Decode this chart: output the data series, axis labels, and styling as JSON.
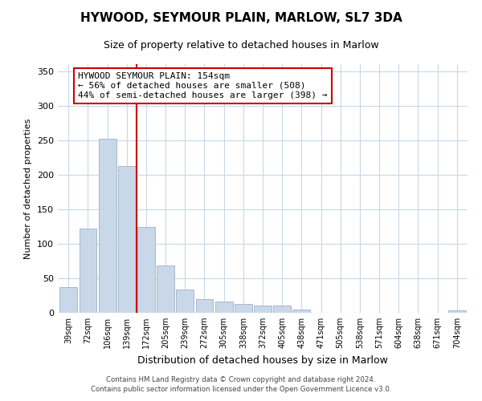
{
  "title": "HYWOOD, SEYMOUR PLAIN, MARLOW, SL7 3DA",
  "subtitle": "Size of property relative to detached houses in Marlow",
  "xlabel": "Distribution of detached houses by size in Marlow",
  "ylabel": "Number of detached properties",
  "bar_color": "#c8d8e8",
  "bar_edge_color": "#a8b8cc",
  "categories": [
    "39sqm",
    "72sqm",
    "106sqm",
    "139sqm",
    "172sqm",
    "205sqm",
    "239sqm",
    "272sqm",
    "305sqm",
    "338sqm",
    "372sqm",
    "405sqm",
    "438sqm",
    "471sqm",
    "505sqm",
    "538sqm",
    "571sqm",
    "604sqm",
    "638sqm",
    "671sqm",
    "704sqm"
  ],
  "values": [
    37,
    122,
    252,
    212,
    124,
    68,
    34,
    20,
    16,
    13,
    10,
    10,
    5,
    0,
    0,
    0,
    0,
    0,
    0,
    0,
    3
  ],
  "vline_x": 3.5,
  "vline_color": "#cc0000",
  "annotation_line1": "HYWOOD SEYMOUR PLAIN: 154sqm",
  "annotation_line2": "← 56% of detached houses are smaller (508)",
  "annotation_line3": "44% of semi-detached houses are larger (398) →",
  "ylim": [
    0,
    360
  ],
  "yticks": [
    0,
    50,
    100,
    150,
    200,
    250,
    300,
    350
  ],
  "footer_line1": "Contains HM Land Registry data © Crown copyright and database right 2024.",
  "footer_line2": "Contains public sector information licensed under the Open Government Licence v3.0.",
  "background_color": "#ffffff",
  "grid_color": "#c8d8e8"
}
